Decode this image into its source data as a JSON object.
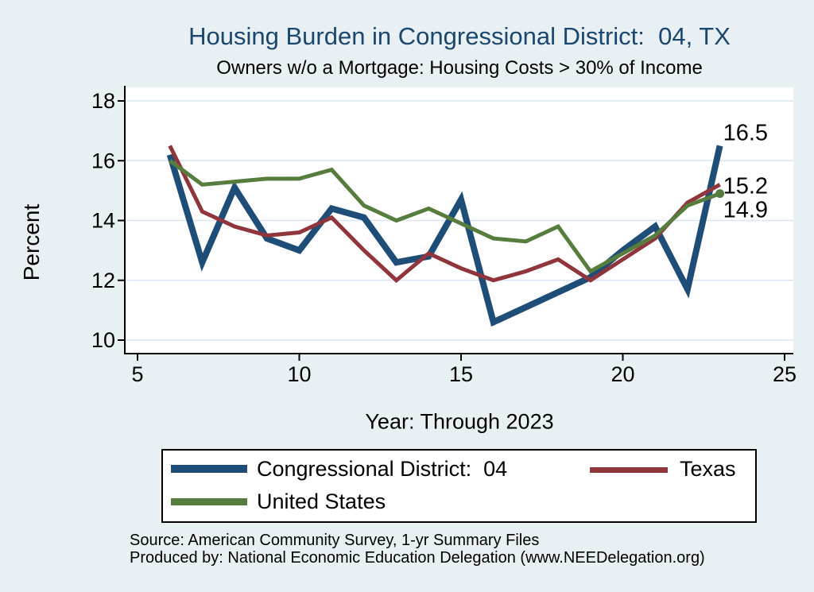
{
  "page": {
    "title": "Housing Burden in Congressional District:  04, TX",
    "subtitle": "Owners w/o a Mortgage: Housing Costs > 30% of Income",
    "title_color": "#1a476f",
    "background_color": "#e9f0f3",
    "source_line1": "Source: American Community Survey, 1-yr Summary Files",
    "source_line2": "Produced by: National Economic Education Delegation (www.NEEDelegation.org)"
  },
  "chart_data": {
    "type": "line",
    "title": "Housing Burden in Congressional District:  04, TX",
    "subtitle": "Owners w/o a Mortgage: Housing Costs > 30% of Income",
    "xlabel": "Year: Through 2023",
    "ylabel": "Percent",
    "xticks": [
      5,
      10,
      15,
      20,
      25
    ],
    "yticks": [
      10,
      12,
      14,
      16,
      18
    ],
    "xlim": [
      5,
      25
    ],
    "ylim": [
      10,
      18
    ],
    "grid": true,
    "legend_position": "bottom",
    "x": [
      6,
      7,
      8,
      9,
      10,
      11,
      12,
      13,
      14,
      15,
      16,
      17,
      18,
      19,
      20,
      21,
      22,
      23
    ],
    "series": [
      {
        "name": "Congressional District:  04",
        "color": "#1e4e78",
        "line_width": 8,
        "values": [
          16.2,
          12.6,
          15.1,
          13.4,
          13.0,
          14.4,
          14.1,
          12.6,
          12.8,
          14.7,
          10.6,
          11.1,
          11.6,
          12.1,
          13.0,
          13.8,
          11.7,
          16.5
        ],
        "end_label": "16.5",
        "end_marker": false
      },
      {
        "name": "Texas",
        "color": "#90353b",
        "line_width": 5,
        "values": [
          16.5,
          14.3,
          13.8,
          13.5,
          13.6,
          14.1,
          13.0,
          12.0,
          12.9,
          12.4,
          12.0,
          12.3,
          12.7,
          12.0,
          12.7,
          13.4,
          14.6,
          15.2
        ],
        "end_label": "15.2",
        "end_marker": false
      },
      {
        "name": "United States",
        "color": "#567d3e",
        "line_width": 5,
        "values": [
          16.0,
          15.2,
          15.3,
          15.4,
          15.4,
          15.7,
          14.5,
          14.0,
          14.4,
          13.9,
          13.4,
          13.3,
          13.8,
          12.3,
          12.9,
          13.5,
          14.5,
          14.9
        ],
        "end_label": "14.9",
        "end_marker": true
      }
    ]
  }
}
